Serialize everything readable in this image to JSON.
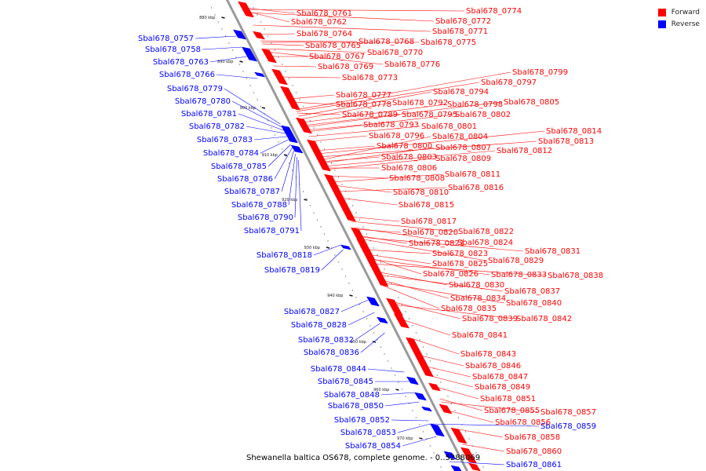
{
  "title": "Shewanella baltica OS678, complete genome. - 0..5288069",
  "legend": {
    "forward_label": "Forward",
    "reverse_label": "Reverse",
    "forward_color": "#ff0000",
    "reverse_color": "#0000ff"
  },
  "ticks": [
    "880 kbp",
    "890 kbp",
    "900 kbp",
    "910 kbp",
    "920 kbp",
    "930 kbp",
    "940 kbp",
    "950 kbp",
    "960 kbp",
    "970 kbp"
  ],
  "forward_genes": [
    "Sbal678_0761",
    "Sbal678_0762",
    "Sbal678_0764",
    "Sbal678_0765",
    "Sbal678_0767",
    "Sbal678_0769",
    "Sbal678_0773",
    "Sbal678_0777",
    "Sbal678_0778",
    "Sbal678_0789",
    "Sbal678_0793",
    "Sbal678_0796",
    "Sbal678_0800",
    "Sbal678_0803",
    "Sbal678_0806",
    "Sbal678_0808",
    "Sbal678_0810",
    "Sbal678_0815",
    "Sbal678_0817",
    "Sbal678_0820",
    "Sbal678_0821",
    "Sbal678_0823",
    "Sbal678_0825",
    "Sbal678_0826",
    "Sbal678_0830",
    "Sbal678_0834",
    "Sbal678_0835",
    "Sbal678_0839",
    "Sbal678_0841",
    "Sbal678_0843",
    "Sbal678_0846",
    "Sbal678_0847",
    "Sbal678_0849",
    "Sbal678_0851",
    "Sbal678_0855",
    "Sbal678_0856",
    "Sbal678_0858",
    "Sbal678_0860",
    "Sbal678_0774",
    "Sbal678_0772",
    "Sbal678_0771",
    "Sbal678_0768",
    "Sbal678_0775",
    "Sbal678_0770",
    "Sbal678_0776",
    "Sbal678_0799",
    "Sbal678_0797",
    "Sbal678_0794",
    "Sbal678_0792",
    "Sbal678_0798",
    "Sbal678_0805",
    "Sbal678_0795",
    "Sbal678_0802",
    "Sbal678_0801",
    "Sbal678_0814",
    "Sbal678_0813",
    "Sbal678_0804",
    "Sbal678_0807",
    "Sbal678_0812",
    "Sbal678_0809",
    "Sbal678_0811",
    "Sbal678_0816",
    "Sbal678_0822",
    "Sbal678_0824",
    "Sbal678_0831",
    "Sbal678_0829",
    "Sbal678_0833",
    "Sbal678_0838",
    "Sbal678_0837",
    "Sbal678_0840",
    "Sbal678_0842",
    "Sbal678_0857"
  ],
  "reverse_genes": [
    "Sbal678_0757",
    "Sbal678_0758",
    "Sbal678_0763",
    "Sbal678_0766",
    "Sbal678_0779",
    "Sbal678_0780",
    "Sbal678_0781",
    "Sbal678_0782",
    "Sbal678_0783",
    "Sbal678_0784",
    "Sbal678_0785",
    "Sbal678_0786",
    "Sbal678_0787",
    "Sbal678_0788",
    "Sbal678_0790",
    "Sbal678_0791",
    "Sbal678_0818",
    "Sbal678_0819",
    "Sbal678_0827",
    "Sbal678_0828",
    "Sbal678_0832",
    "Sbal678_0836",
    "Sbal678_0844",
    "Sbal678_0845",
    "Sbal678_0848",
    "Sbal678_0850",
    "Sbal678_0852",
    "Sbal678_0853",
    "Sbal678_0854",
    "Sbal678_0859",
    "Sbal678_0861"
  ]
}
